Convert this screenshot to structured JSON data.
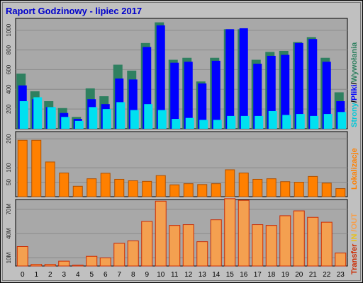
{
  "title": "Raport Godzinowy -  lipiec 2017",
  "colors": {
    "background": "#c0c0c0",
    "title": "#0000cc",
    "panel": "#a8a8a8",
    "hits": "#2f8060",
    "files": "#0000ff",
    "pages": "#00e0f0",
    "visits": "#ff8000",
    "transfer_edge": "#cc2a00",
    "transfer_fill": "#f4a050"
  },
  "chart_data": [
    {
      "type": "bar",
      "panel": "traffic",
      "categories": [
        "0",
        "1",
        "2",
        "3",
        "4",
        "5",
        "6",
        "7",
        "8",
        "9",
        "10",
        "11",
        "12",
        "13",
        "14",
        "15",
        "16",
        "17",
        "18",
        "19",
        "20",
        "21",
        "22",
        "23"
      ],
      "yticks": [
        "200",
        "400",
        "600",
        "800",
        "1000"
      ],
      "ylim": [
        0,
        1120
      ],
      "side_label_parts": [
        "Strony",
        "/",
        "Pliki",
        "/",
        "Wywołania"
      ],
      "series": [
        {
          "name": "Wywołania",
          "values": [
            560,
            380,
            280,
            210,
            120,
            410,
            330,
            650,
            590,
            870,
            1080,
            700,
            720,
            480,
            720,
            1010,
            1010,
            700,
            780,
            790,
            880,
            930,
            720,
            370
          ]
        },
        {
          "name": "Pliki",
          "values": [
            440,
            300,
            220,
            160,
            100,
            300,
            250,
            510,
            500,
            830,
            1050,
            670,
            680,
            460,
            690,
            1010,
            1020,
            660,
            740,
            750,
            870,
            910,
            680,
            280
          ]
        },
        {
          "name": "Strony",
          "values": [
            280,
            320,
            220,
            120,
            80,
            220,
            200,
            270,
            190,
            250,
            190,
            100,
            110,
            90,
            90,
            130,
            130,
            130,
            180,
            140,
            150,
            130,
            150,
            170
          ]
        }
      ]
    },
    {
      "type": "bar",
      "panel": "visits",
      "categories": [
        "0",
        "1",
        "2",
        "3",
        "4",
        "5",
        "6",
        "7",
        "8",
        "9",
        "10",
        "11",
        "12",
        "13",
        "14",
        "15",
        "16",
        "17",
        "18",
        "19",
        "20",
        "21",
        "22",
        "23"
      ],
      "yticks": [
        "50",
        "100",
        "200"
      ],
      "ylim": [
        0,
        225
      ],
      "side_label_parts": [
        "Lokalizacje"
      ],
      "series": [
        {
          "name": "Lokalizacje",
          "values": [
            195,
            195,
            120,
            82,
            36,
            62,
            81,
            60,
            55,
            53,
            73,
            41,
            45,
            42,
            45,
            93,
            82,
            60,
            62,
            52,
            50,
            70,
            47,
            28
          ]
        }
      ]
    },
    {
      "type": "bar",
      "panel": "transfer",
      "categories": [
        "0",
        "1",
        "2",
        "3",
        "4",
        "5",
        "6",
        "7",
        "8",
        "9",
        "10",
        "11",
        "12",
        "13",
        "14",
        "15",
        "16",
        "17",
        "18",
        "19",
        "20",
        "21",
        "22",
        "23"
      ],
      "yticks": [
        "10M",
        "40M",
        "70M"
      ],
      "ylim": [
        0,
        82
      ],
      "side_label_parts": [
        "Transfer",
        " IN ",
        "/OUT"
      ],
      "series": [
        {
          "name": "Transfer",
          "values": [
            24,
            2,
            2,
            6,
            1,
            12,
            10,
            28,
            31,
            55,
            80,
            50,
            51,
            30,
            57,
            83,
            81,
            51,
            50,
            62,
            68,
            60,
            54,
            16
          ]
        }
      ]
    }
  ]
}
